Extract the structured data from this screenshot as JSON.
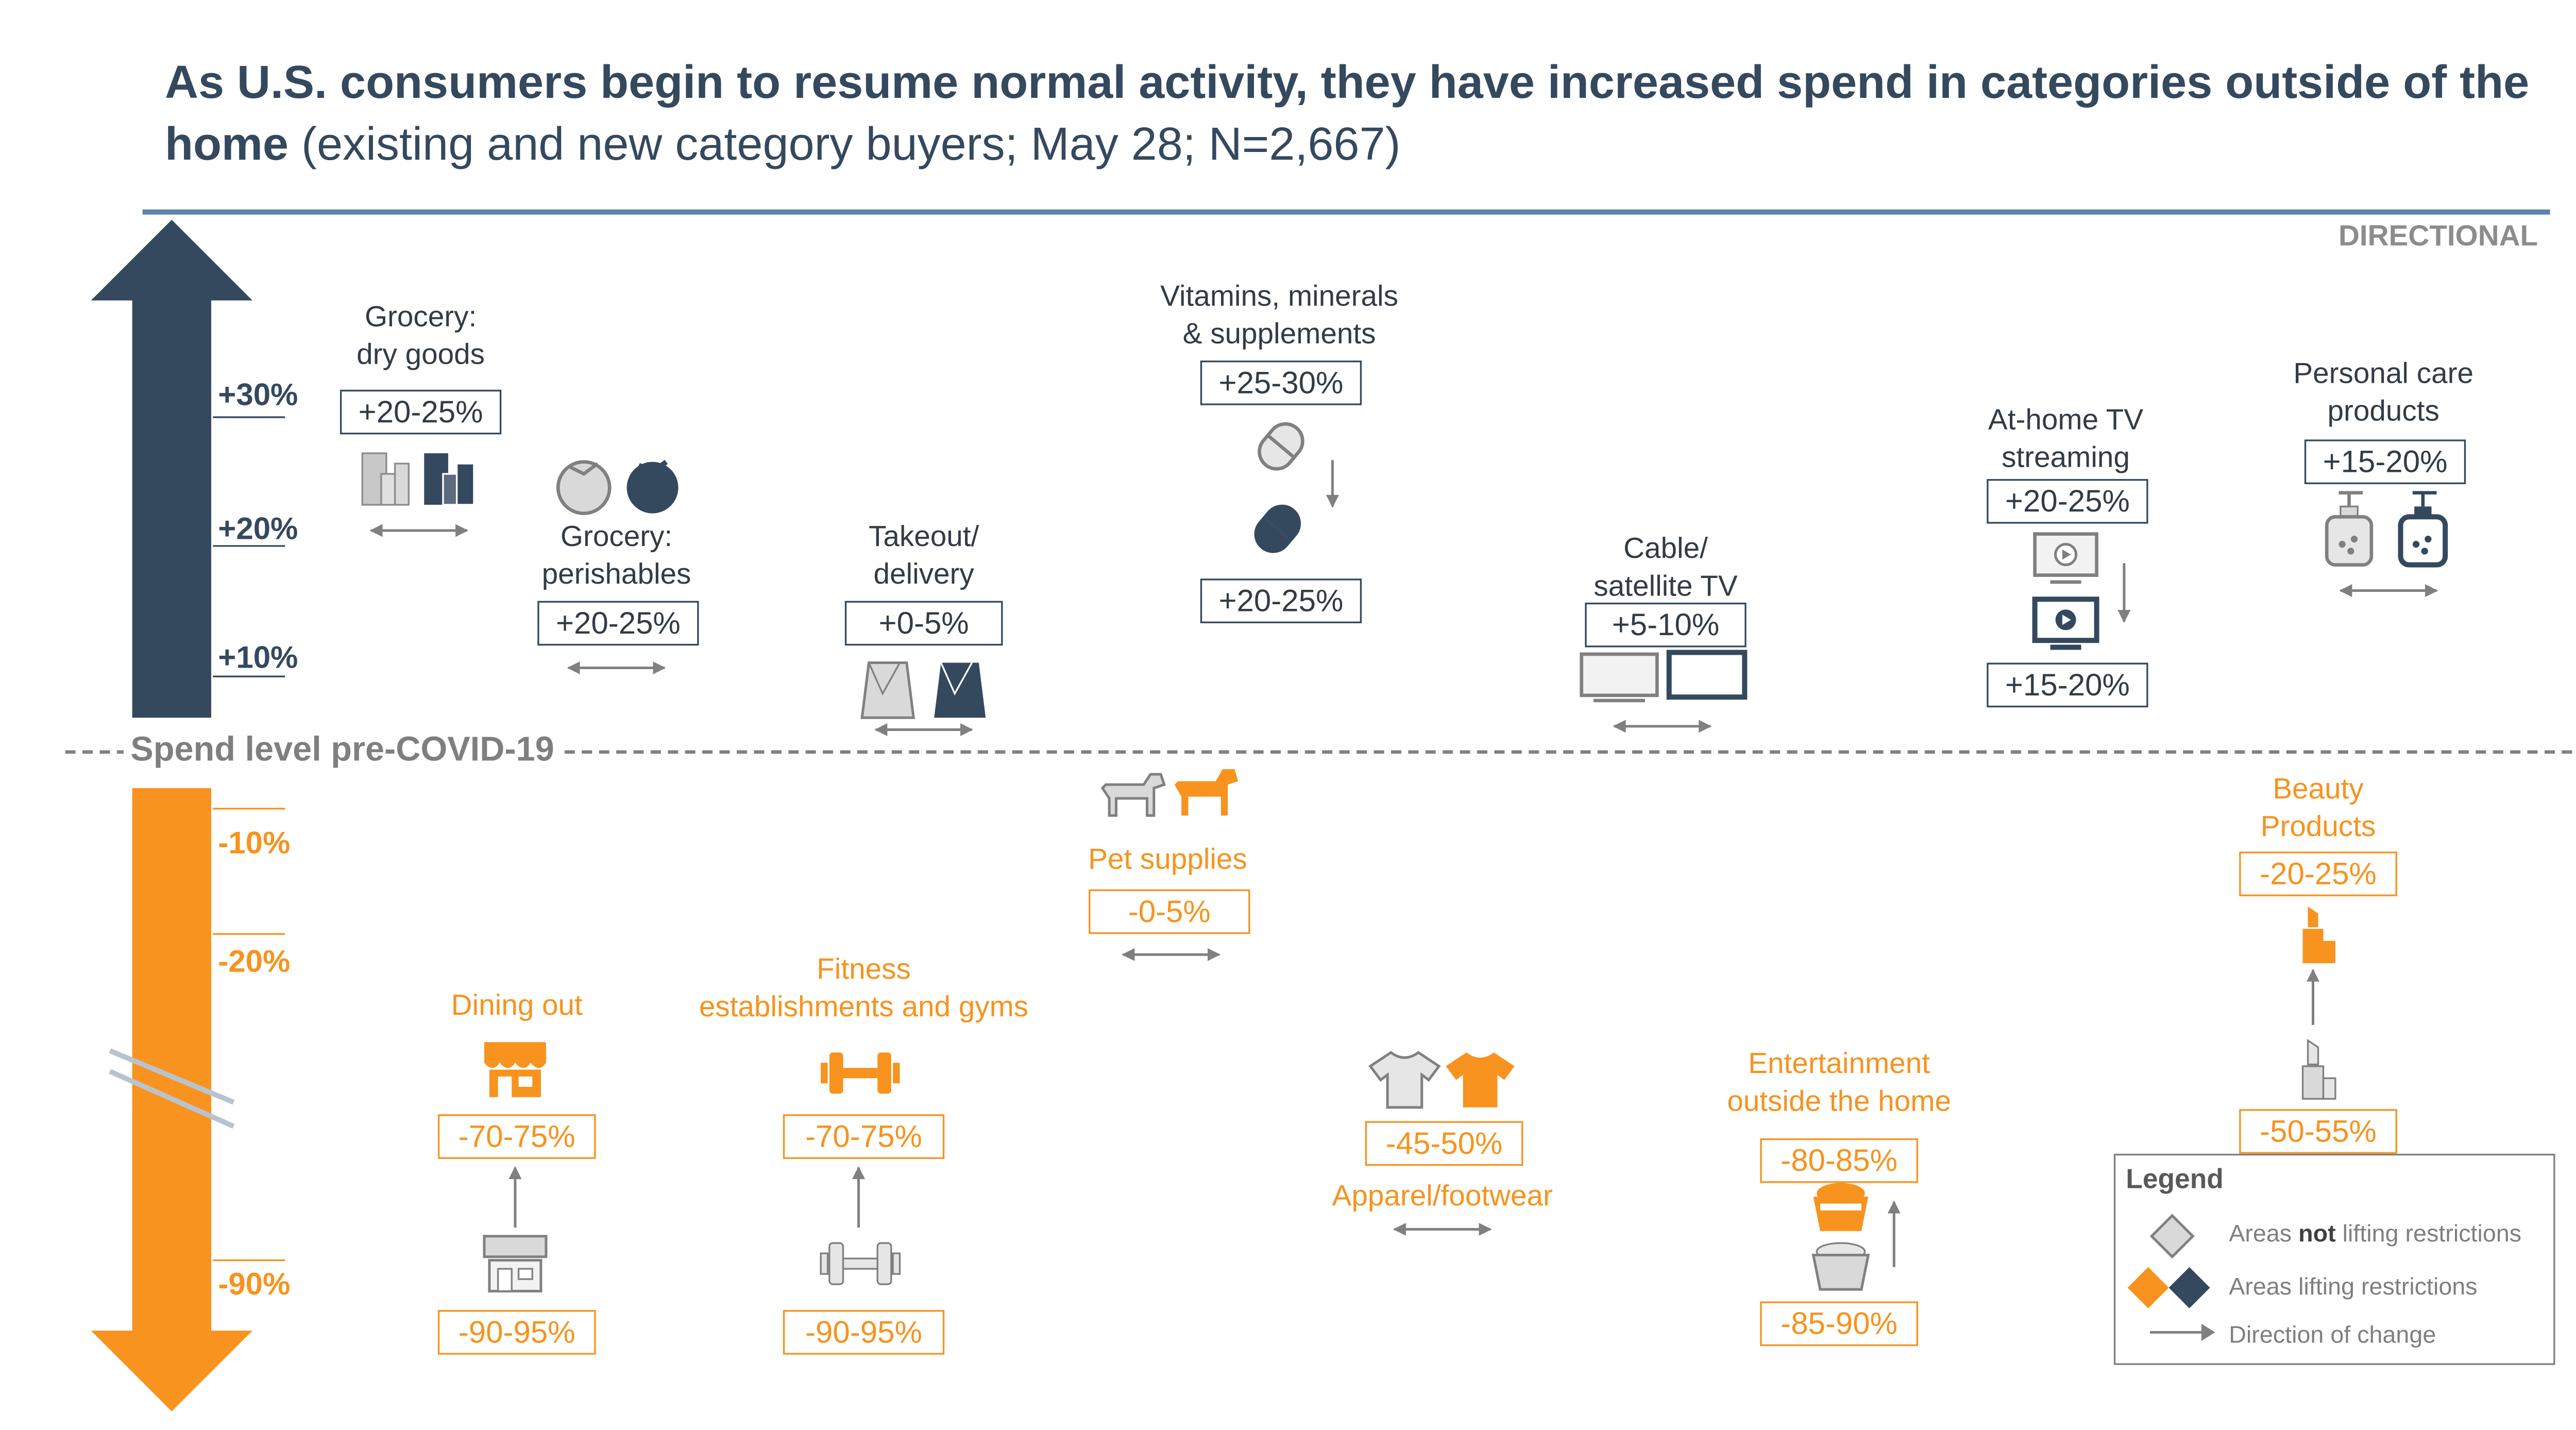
{
  "title": {
    "main": "As U.S. consumers begin to resume normal activity, they have increased spend in categories outside of the home",
    "sub": "(existing and new category buyers; May 28; N=2,667)"
  },
  "tag": "DIRECTIONAL",
  "baseline_label": "Spend level pre-COVID-19",
  "axis": {
    "up_ticks": [
      "+30%",
      "+20%",
      "+10%"
    ],
    "down_ticks": [
      "-10%",
      "-20%",
      "-90%"
    ]
  },
  "categories": {
    "grocery_dry": {
      "label_1": "Grocery:",
      "label_2": "dry goods",
      "value": "+20-25%",
      "icon_before": "grocery-box-gray-icon",
      "icon_after": "grocery-box-dark-icon"
    },
    "grocery_perishables": {
      "label_1": "Grocery:",
      "label_2": "perishables",
      "value": "+20-25%",
      "icon_before": "tomato-gray-icon",
      "icon_after": "tomato-dark-icon"
    },
    "takeout": {
      "label_1": "Takeout/",
      "label_2": "delivery",
      "value": "+0-5%",
      "icon_before": "takeout-bag-gray-icon",
      "icon_after": "takeout-bag-dark-icon"
    },
    "vitamins": {
      "label_1": "Vitamins, minerals",
      "label_2": "& supplements",
      "value_before": "+25-30%",
      "value_after": "+20-25%",
      "icon_before": "pill-gray-icon",
      "icon_after": "pill-dark-icon"
    },
    "cable_tv": {
      "label_1": "Cable/",
      "label_2": "satellite TV",
      "value": "+5-10%",
      "icon_before": "tv-gray-icon",
      "icon_after": "tv-dark-icon"
    },
    "tv_streaming": {
      "label_1": "At-home TV",
      "label_2": "streaming",
      "value_before": "+20-25%",
      "value_after": "+15-20%",
      "icon_before": "streaming-tv-gray-icon",
      "icon_after": "streaming-tv-dark-icon"
    },
    "personal_care": {
      "label_1": "Personal care",
      "label_2": "products",
      "value": "+15-20%",
      "icon_before": "soap-pump-gray-icon",
      "icon_after": "soap-pump-dark-icon"
    },
    "pet_supplies": {
      "label": "Pet supplies",
      "value": "-0-5%",
      "icon_before": "dog-gray-icon",
      "icon_after": "dog-orange-icon"
    },
    "dining_out": {
      "label": "Dining out",
      "value_after": "-70-75%",
      "value_before": "-90-95%",
      "icon_before": "storefront-gray-icon",
      "icon_after": "storefront-orange-icon"
    },
    "fitness": {
      "label_1": "Fitness",
      "label_2": "establishments and gyms",
      "value_after": "-70-75%",
      "value_before": "-90-95%",
      "icon_before": "dumbbell-gray-icon",
      "icon_after": "dumbbell-orange-icon"
    },
    "apparel": {
      "label": "Apparel/footwear",
      "value": "-45-50%",
      "icon_before": "shirt-gray-icon",
      "icon_after": "shirt-orange-icon"
    },
    "entertainment": {
      "label_1": "Entertainment",
      "label_2": "outside the home",
      "value_after": "-80-85%",
      "value_before": "-85-90%",
      "icon_before": "popcorn-gray-icon",
      "icon_after": "popcorn-orange-icon"
    },
    "beauty": {
      "label_1": "Beauty",
      "label_2": "Products",
      "value_after": "-20-25%",
      "value_before": "-50-55%",
      "icon_before": "lipstick-gray-icon",
      "icon_after": "lipstick-orange-icon"
    }
  },
  "legend": {
    "title": "Legend",
    "item1_pre": "Areas ",
    "item1_bold": "not",
    "item1_post": " lifting restrictions",
    "item2": "Areas lifting restrictions",
    "item3": "Direction of change"
  },
  "colors": {
    "dark": "#34495e",
    "orange": "#f7931e",
    "gray": "#a6a6a6",
    "baseline": "#808080"
  }
}
